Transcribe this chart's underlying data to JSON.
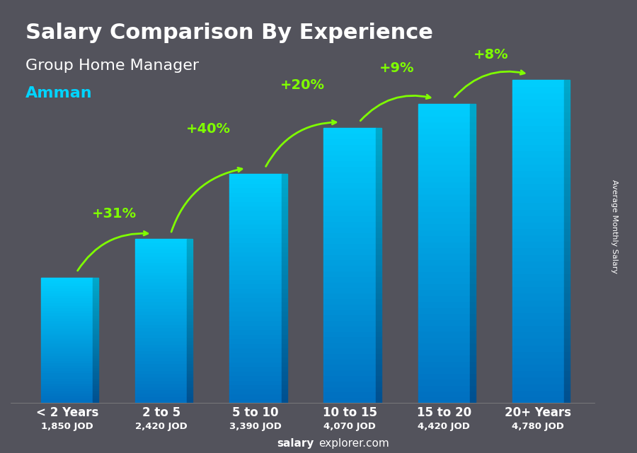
{
  "title": "Salary Comparison By Experience",
  "subtitle": "Group Home Manager",
  "city": "Amman",
  "categories": [
    "< 2 Years",
    "2 to 5",
    "5 to 10",
    "10 to 15",
    "15 to 20",
    "20+ Years"
  ],
  "values": [
    1850,
    2420,
    3390,
    4070,
    4420,
    4780
  ],
  "labels": [
    "1,850 JOD",
    "2,420 JOD",
    "3,390 JOD",
    "4,070 JOD",
    "4,420 JOD",
    "4,780 JOD"
  ],
  "pct_changes": [
    "+31%",
    "+40%",
    "+20%",
    "+9%",
    "+8%"
  ],
  "bar_color_top": "#00cfff",
  "bar_color_bottom": "#0070c0",
  "bg_color": "#1a1a2e",
  "text_color_white": "#ffffff",
  "text_color_cyan": "#00d4ff",
  "text_color_green": "#7fff00",
  "ylabel": "Average Monthly Salary",
  "footer": "salaryexplorer.com",
  "footer_bold": "salary",
  "ylim_max": 5800
}
